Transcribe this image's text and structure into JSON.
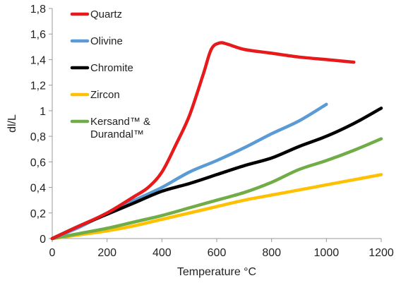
{
  "chart_data": {
    "type": "line",
    "title": "",
    "xlabel": "Temperature °C",
    "ylabel": "dl/L",
    "xlim": [
      0,
      1200
    ],
    "ylim": [
      0,
      1.8
    ],
    "xticks": [
      "0",
      "200",
      "400",
      "600",
      "800",
      "1000",
      "1200"
    ],
    "yticks": [
      "0",
      "0,2",
      "0,4",
      "0,6",
      "0,8",
      "1",
      "1,2",
      "1,4",
      "1,6",
      "1,8"
    ],
    "grid": false,
    "legend_position": "top-left",
    "series": [
      {
        "name": "Quartz",
        "color": "#e8191a",
        "points": [
          [
            0,
            0
          ],
          [
            100,
            0.1
          ],
          [
            200,
            0.2
          ],
          [
            300,
            0.33
          ],
          [
            350,
            0.4
          ],
          [
            400,
            0.52
          ],
          [
            450,
            0.73
          ],
          [
            500,
            0.96
          ],
          [
            550,
            1.28
          ],
          [
            580,
            1.48
          ],
          [
            610,
            1.53
          ],
          [
            640,
            1.52
          ],
          [
            700,
            1.48
          ],
          [
            800,
            1.45
          ],
          [
            900,
            1.42
          ],
          [
            1000,
            1.4
          ],
          [
            1100,
            1.38
          ]
        ]
      },
      {
        "name": "Olivine",
        "color": "#5b9bd5",
        "points": [
          [
            0,
            0
          ],
          [
            100,
            0.09
          ],
          [
            200,
            0.2
          ],
          [
            300,
            0.3
          ],
          [
            400,
            0.4
          ],
          [
            500,
            0.52
          ],
          [
            600,
            0.61
          ],
          [
            700,
            0.71
          ],
          [
            800,
            0.82
          ],
          [
            900,
            0.92
          ],
          [
            1000,
            1.05
          ]
        ]
      },
      {
        "name": "Chromite",
        "color": "#000000",
        "points": [
          [
            0,
            0
          ],
          [
            100,
            0.1
          ],
          [
            200,
            0.19
          ],
          [
            300,
            0.28
          ],
          [
            400,
            0.37
          ],
          [
            500,
            0.43
          ],
          [
            600,
            0.5
          ],
          [
            700,
            0.57
          ],
          [
            800,
            0.63
          ],
          [
            900,
            0.72
          ],
          [
            1000,
            0.8
          ],
          [
            1100,
            0.9
          ],
          [
            1200,
            1.02
          ]
        ]
      },
      {
        "name": "Zircon",
        "color": "#ffc000",
        "points": [
          [
            0,
            0
          ],
          [
            100,
            0.03
          ],
          [
            200,
            0.06
          ],
          [
            300,
            0.1
          ],
          [
            400,
            0.15
          ],
          [
            500,
            0.2
          ],
          [
            600,
            0.25
          ],
          [
            700,
            0.3
          ],
          [
            800,
            0.34
          ],
          [
            900,
            0.38
          ],
          [
            1000,
            0.42
          ],
          [
            1100,
            0.46
          ],
          [
            1200,
            0.5
          ]
        ]
      },
      {
        "name": "Kersand™ & Durandal™",
        "name_lines": [
          "Kersand™ &",
          "Durandal™"
        ],
        "color": "#70ad47",
        "points": [
          [
            0,
            0
          ],
          [
            100,
            0.04
          ],
          [
            200,
            0.08
          ],
          [
            300,
            0.13
          ],
          [
            400,
            0.18
          ],
          [
            500,
            0.24
          ],
          [
            600,
            0.3
          ],
          [
            700,
            0.36
          ],
          [
            800,
            0.44
          ],
          [
            900,
            0.54
          ],
          [
            1000,
            0.61
          ],
          [
            1100,
            0.69
          ],
          [
            1200,
            0.78
          ]
        ]
      }
    ]
  }
}
